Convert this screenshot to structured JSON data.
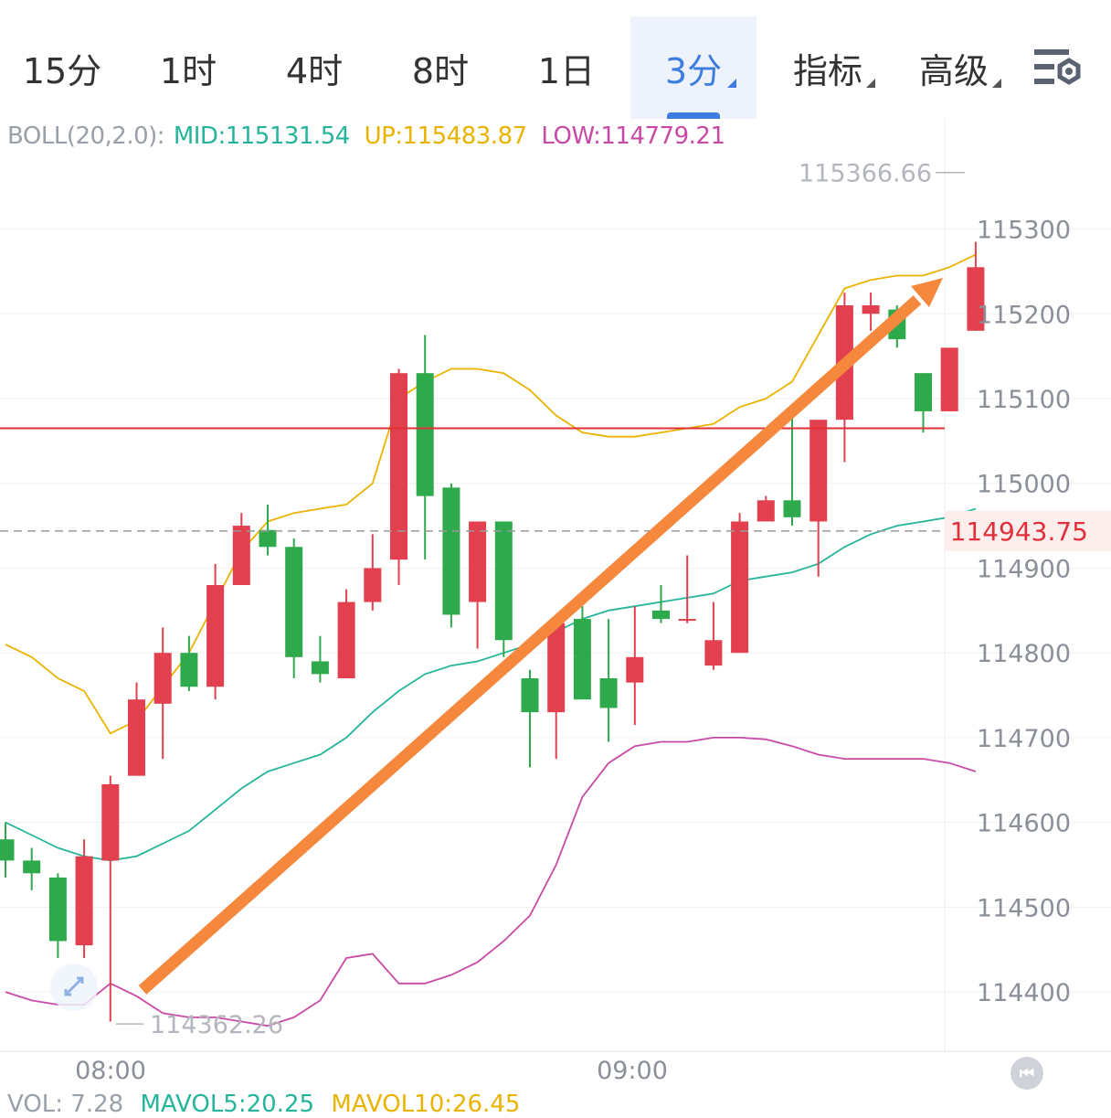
{
  "tabs": [
    {
      "label": "15分",
      "name": "tab-15min"
    },
    {
      "label": "1时",
      "name": "tab-1h"
    },
    {
      "label": "4时",
      "name": "tab-4h"
    },
    {
      "label": "8时",
      "name": "tab-8h"
    },
    {
      "label": "1日",
      "name": "tab-1d"
    },
    {
      "label": "3分",
      "name": "tab-3min",
      "active": true,
      "dropdown": true
    },
    {
      "label": "指标",
      "name": "tab-indicators",
      "dropdown": true
    },
    {
      "label": "高级",
      "name": "tab-advanced",
      "dropdown": true
    }
  ],
  "settings_icon": "chart-settings-icon",
  "boll": {
    "label": "BOLL(20,2.0):",
    "mid": "MID:115131.54",
    "up": "UP:115483.87",
    "low": "LOW:114779.21"
  },
  "vol": {
    "label": "VOL: 7.28",
    "ma5": "MAVOL5:20.25",
    "ma10": "MAVOL10:26.45"
  },
  "colors": {
    "up_candle": "#e2404f",
    "down_candle": "#2eaa4c",
    "mid_line": "#26b59b",
    "upper_band": "#e9b300",
    "lower_band": "#c94aa6",
    "tab_active": "#3e7de0",
    "arrow": "#f5883c",
    "price_line": "#e0303a"
  },
  "chart_data": {
    "type": "candlestick",
    "time_labels": [
      "08:00",
      "09:00"
    ],
    "y_ticks": [
      115300,
      115200,
      115100,
      115000,
      114900,
      114800,
      114700,
      114600,
      114500,
      114400
    ],
    "ylim": [
      114330,
      115430
    ],
    "high_marker": "115366.66",
    "low_marker": "114362.26",
    "last_price": "114943.75",
    "horizontal_line": 115065,
    "candles": [
      [
        114580,
        114555,
        114600,
        114535
      ],
      [
        114555,
        114540,
        114570,
        114520
      ],
      [
        114535,
        114460,
        114540,
        114440
      ],
      [
        114455,
        114560,
        114580,
        114440
      ],
      [
        114555,
        114645,
        114655,
        114365
      ],
      [
        114655,
        114745,
        114765,
        114655
      ],
      [
        114740,
        114800,
        114830,
        114675
      ],
      [
        114800,
        114760,
        114820,
        114755
      ],
      [
        114760,
        114880,
        114905,
        114745
      ],
      [
        114880,
        114950,
        114965,
        114880
      ],
      [
        114945,
        114925,
        114975,
        114915
      ],
      [
        114925,
        114795,
        114935,
        114770
      ],
      [
        114790,
        114775,
        114820,
        114765
      ],
      [
        114770,
        114860,
        114875,
        114770
      ],
      [
        114860,
        114900,
        114940,
        114850
      ],
      [
        114910,
        115130,
        115135,
        114880
      ],
      [
        115130,
        114985,
        115175,
        114910
      ],
      [
        114995,
        114845,
        115000,
        114830
      ],
      [
        114860,
        114955,
        114955,
        114805
      ],
      [
        114955,
        114815,
        114955,
        114795
      ],
      [
        114770,
        114730,
        114780,
        114665
      ],
      [
        114730,
        114835,
        114835,
        114675
      ],
      [
        114840,
        114745,
        114855,
        114745
      ],
      [
        114770,
        114735,
        114840,
        114695
      ],
      [
        114765,
        114795,
        114855,
        114715
      ],
      [
        114850,
        114840,
        114880,
        114835
      ],
      [
        114840,
        114840,
        114915,
        114835
      ],
      [
        114785,
        114815,
        114860,
        114780
      ],
      [
        114800,
        114955,
        114965,
        114800
      ],
      [
        114955,
        114980,
        114985,
        114965
      ],
      [
        114980,
        114960,
        115080,
        114950
      ],
      [
        114955,
        115075,
        115075,
        114890
      ],
      [
        115075,
        115210,
        115225,
        115025
      ],
      [
        115200,
        115210,
        115225,
        115180
      ],
      [
        115205,
        115170,
        115210,
        115160
      ],
      [
        115130,
        115085,
        115130,
        115060
      ],
      [
        115085,
        115160,
        115160,
        115085
      ],
      [
        115180,
        115255,
        115285,
        115180
      ]
    ],
    "mid_band": [
      114600,
      114585,
      114570,
      114560,
      114555,
      114560,
      114575,
      114590,
      114615,
      114640,
      114660,
      114670,
      114680,
      114700,
      114730,
      114755,
      114775,
      114785,
      114790,
      114800,
      114810,
      114825,
      114840,
      114850,
      114855,
      114860,
      114865,
      114870,
      114885,
      114890,
      114895,
      114905,
      114925,
      114940,
      114950,
      114955,
      114960,
      114970
    ],
    "upper_band": [
      114810,
      114795,
      114770,
      114755,
      114705,
      114720,
      114760,
      114800,
      114860,
      114920,
      114955,
      114965,
      114970,
      114975,
      115000,
      115100,
      115120,
      115135,
      115135,
      115130,
      115110,
      115080,
      115060,
      115055,
      115055,
      115060,
      115065,
      115070,
      115090,
      115100,
      115120,
      115175,
      115230,
      115240,
      115245,
      115245,
      115255,
      115270
    ],
    "lower_band": [
      114400,
      114390,
      114385,
      114385,
      114410,
      114395,
      114375,
      114370,
      114370,
      114365,
      114360,
      114370,
      114390,
      114440,
      114445,
      114410,
      114410,
      114420,
      114435,
      114460,
      114490,
      114550,
      114630,
      114670,
      114690,
      114695,
      114695,
      114700,
      114700,
      114698,
      114690,
      114680,
      114675,
      114675,
      114675,
      114675,
      114670,
      114660
    ]
  }
}
